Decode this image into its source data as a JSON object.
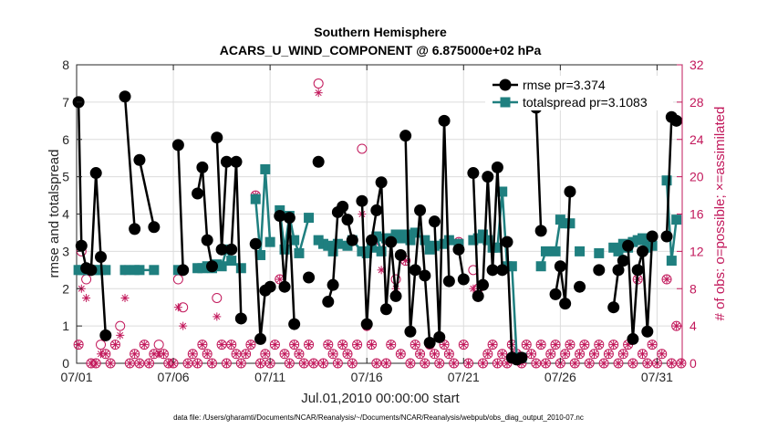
{
  "chart_data": {
    "type": "line",
    "title": [
      "Southern Hemisphere",
      "ACARS_U_WIND_COMPONENT @ 6.875000e+02 hPa"
    ],
    "xlabel": "Jul.01,2010 00:00:00 start",
    "ylabel": "rmse and totalspread",
    "ylabel_right": "# of obs: o=possible; ×=assimilated",
    "xlim": [
      0,
      31.3
    ],
    "ylim": [
      0,
      8
    ],
    "ylim_right": [
      0,
      32
    ],
    "x_ticks": [
      0,
      5,
      10,
      15,
      20,
      25,
      30
    ],
    "x_tick_labels": [
      "07/01",
      "07/06",
      "07/11",
      "07/16",
      "07/21",
      "07/26",
      "07/31"
    ],
    "y_ticks": [
      0,
      1,
      2,
      3,
      4,
      5,
      6,
      7,
      8
    ],
    "y_tick_labels": [
      "0",
      "1",
      "2",
      "3",
      "4",
      "5",
      "6",
      "7",
      "8"
    ],
    "y_ticks_right": [
      0,
      4,
      8,
      12,
      16,
      20,
      24,
      28,
      32
    ],
    "y_tick_labels_right": [
      "0",
      "4",
      "8",
      "12",
      "16",
      "20",
      "24",
      "28",
      "32"
    ],
    "grid": true,
    "legend_position": "top-right",
    "series": [
      {
        "name": "rmse pr=3.374",
        "color": "#000000",
        "marker": "circle",
        "segments": [
          {
            "x": [
              0.1,
              0.25,
              0.5,
              0.75,
              1.0,
              1.25,
              1.5
            ],
            "y": [
              7.0,
              3.15,
              2.55,
              2.5,
              5.1,
              2.85,
              0.75
            ]
          },
          {
            "x": [
              2.5,
              3.0
            ],
            "y": [
              7.15,
              3.6
            ]
          },
          {
            "x": [
              3.25,
              4.0
            ],
            "y": [
              5.45,
              3.65
            ]
          },
          {
            "x": [
              5.25,
              5.5
            ],
            "y": [
              5.85,
              2.5
            ]
          },
          {
            "x": [
              6.25,
              6.5,
              6.75,
              7.0
            ],
            "y": [
              4.55,
              5.25,
              3.3,
              2.6
            ]
          },
          {
            "x": [
              7.25,
              7.5,
              7.75
            ],
            "y": [
              6.05,
              3.05,
              5.4
            ]
          },
          {
            "x": [
              8.0,
              8.25,
              8.5
            ],
            "y": [
              3.05,
              5.4,
              1.2
            ]
          },
          {
            "x": [
              9.25,
              9.5,
              9.75,
              10.0
            ],
            "y": [
              3.2,
              0.65,
              1.95,
              2.05
            ]
          },
          {
            "x": [
              10.5,
              10.75,
              11.0,
              11.25
            ],
            "y": [
              3.95,
              2.05,
              3.9,
              1.05
            ]
          },
          {
            "x": [
              12.0
            ],
            "y": [
              2.3
            ]
          },
          {
            "x": [
              12.5
            ],
            "y": [
              5.4
            ]
          },
          {
            "x": [
              13.0,
              13.25,
              13.5,
              13.75,
              14.0,
              14.25
            ],
            "y": [
              1.65,
              2.1,
              4.05,
              4.2,
              3.85,
              3.3
            ]
          },
          {
            "x": [
              14.75,
              15.0,
              15.25,
              15.5,
              15.75,
              16.0,
              16.25,
              16.5,
              16.75
            ],
            "y": [
              4.35,
              1.05,
              3.3,
              4.1,
              4.85,
              1.45,
              3.25,
              1.8,
              2.9
            ]
          },
          {
            "x": [
              17.0,
              17.25,
              17.5,
              17.75,
              18.0,
              18.25
            ],
            "y": [
              6.1,
              0.85,
              2.5,
              4.1,
              2.35,
              0.55
            ]
          },
          {
            "x": [
              18.5,
              18.75,
              19.0,
              19.25
            ],
            "y": [
              3.8,
              0.7,
              6.5,
              2.2
            ]
          },
          {
            "x": [
              19.75,
              20.0
            ],
            "y": [
              3.05,
              2.25
            ]
          },
          {
            "x": [
              20.5,
              20.75,
              21.0,
              21.25,
              21.5,
              21.75,
              22.0
            ],
            "y": [
              5.1,
              1.8,
              2.1,
              5.0,
              2.5,
              5.25,
              2.5
            ]
          },
          {
            "x": [
              22.25,
              22.5,
              22.75,
              23.0
            ],
            "y": [
              3.25,
              0.15,
              0.1,
              0.15
            ]
          },
          {
            "x": [
              23.75,
              24.0
            ],
            "y": [
              6.85,
              3.55
            ]
          },
          {
            "x": [
              24.75,
              25.0,
              25.25,
              25.5
            ],
            "y": [
              1.85,
              2.6,
              1.6,
              4.6
            ]
          },
          {
            "x": [
              26.0
            ],
            "y": [
              2.05
            ]
          },
          {
            "x": [
              27.0
            ],
            "y": [
              2.5
            ]
          },
          {
            "x": [
              27.75,
              28.0,
              28.25
            ],
            "y": [
              1.5,
              2.5,
              2.75
            ]
          },
          {
            "x": [
              28.5,
              28.75,
              29.0,
              29.25,
              29.5,
              29.75
            ],
            "y": [
              3.15,
              0.65,
              2.5,
              3.0,
              0.85,
              3.4
            ]
          },
          {
            "x": [
              30.5,
              30.75,
              31.0
            ],
            "y": [
              3.4,
              6.6,
              6.5
            ]
          }
        ]
      },
      {
        "name": "totalspread pr=3.1083",
        "color": "#1f7f7f",
        "marker": "square",
        "segments": [
          {
            "x": [
              0.1,
              0.25,
              0.5,
              0.75,
              1.0,
              1.25,
              1.5
            ],
            "y": [
              2.5,
              2.5,
              2.5,
              2.5,
              2.5,
              2.5,
              2.5
            ]
          },
          {
            "x": [
              2.5,
              3.0,
              3.25,
              4.0
            ],
            "y": [
              2.5,
              2.5,
              2.5,
              2.5
            ]
          },
          {
            "x": [
              5.25
            ],
            "y": [
              2.5
            ]
          },
          {
            "x": [
              6.25,
              6.5,
              6.75,
              7.0,
              7.25,
              7.5,
              7.75,
              8.0
            ],
            "y": [
              2.55,
              2.55,
              2.6,
              2.55,
              2.65,
              2.6,
              3.05,
              2.75
            ]
          },
          {
            "x": [
              8.5
            ],
            "y": [
              2.55
            ]
          },
          {
            "x": [
              9.25,
              9.5,
              9.75,
              10.0
            ],
            "y": [
              4.4,
              2.9,
              5.2,
              3.25
            ]
          },
          {
            "x": [
              10.5,
              10.75,
              11.0,
              11.25,
              11.5,
              12.0
            ],
            "y": [
              4.1,
              3.05,
              3.95,
              3.3,
              2.95,
              3.9
            ]
          },
          {
            "x": [
              12.5,
              12.75,
              13.0,
              13.25,
              13.5,
              14.0
            ],
            "y": [
              3.3,
              3.2,
              3.15,
              3.0,
              3.2,
              3.15
            ]
          },
          {
            "x": [
              14.25,
              14.75,
              15.0,
              15.25,
              15.5,
              15.75,
              16.0,
              16.25,
              16.5,
              16.75,
              17.0,
              17.25,
              17.5
            ],
            "y": [
              3.3,
              3.0,
              2.95,
              3.1,
              3.4,
              3.0,
              3.35,
              3.35,
              3.45,
              3.35,
              3.45,
              3.3,
              3.5
            ]
          },
          {
            "x": [
              18.0,
              18.25,
              18.5,
              19.0,
              19.25,
              19.75
            ],
            "y": [
              3.3,
              3.05,
              3.15,
              3.2,
              3.3,
              3.2
            ]
          },
          {
            "x": [
              20.5,
              20.75,
              21.0,
              21.25,
              21.5,
              21.75,
              22.0,
              22.25
            ],
            "y": [
              3.3,
              3.35,
              3.45,
              3.3,
              3.1,
              3.1,
              4.6,
              2.6
            ]
          },
          {
            "x": [
              22.5,
              22.75,
              23.0
            ],
            "y": [
              2.6,
              0.15,
              0.15
            ]
          },
          {
            "x": [
              24.0,
              24.25,
              24.75,
              25.0,
              25.25,
              25.5
            ],
            "y": [
              2.6,
              3.0,
              3.0,
              3.85,
              3.75,
              3.75
            ]
          },
          {
            "x": [
              26.0
            ],
            "y": [
              3.0
            ]
          },
          {
            "x": [
              27.0
            ],
            "y": [
              2.95
            ]
          },
          {
            "x": [
              27.75,
              28.0,
              28.25,
              28.5,
              28.75,
              29.0,
              29.25,
              29.5,
              29.75
            ],
            "y": [
              3.1,
              3.0,
              3.2,
              3.1,
              3.25,
              3.3,
              3.35,
              3.1,
              3.15
            ]
          },
          {
            "x": [
              30.5,
              30.75,
              31.0
            ],
            "y": [
              4.9,
              2.75,
              3.85
            ]
          }
        ]
      }
    ],
    "obs_possible": {
      "name": "possible",
      "color": "#c2185b",
      "marker": "open-circle",
      "x": [
        0.1,
        0.25,
        0.5,
        0.75,
        1.0,
        1.25,
        1.5,
        1.75,
        2.0,
        2.25,
        2.5,
        2.75,
        3.0,
        3.25,
        3.5,
        3.75,
        4.0,
        4.25,
        4.5,
        4.75,
        5.0,
        5.25,
        5.5,
        5.75,
        6.0,
        6.25,
        6.5,
        6.75,
        7.0,
        7.25,
        7.5,
        7.75,
        8.0,
        8.25,
        8.5,
        8.75,
        9.0,
        9.25,
        9.5,
        9.75,
        10.0,
        10.25,
        10.5,
        10.75,
        11.0,
        11.25,
        11.5,
        11.75,
        12.0,
        12.25,
        12.5,
        12.75,
        13.0,
        13.25,
        13.5,
        13.75,
        14.0,
        14.25,
        14.5,
        14.75,
        15.0,
        15.25,
        15.5,
        15.75,
        16.0,
        16.25,
        16.5,
        16.75,
        17.0,
        17.25,
        17.5,
        17.75,
        18.0,
        18.25,
        18.5,
        18.75,
        19.0,
        19.25,
        19.5,
        19.75,
        20.0,
        20.25,
        20.5,
        20.75,
        21.0,
        21.25,
        21.5,
        21.75,
        22.0,
        22.25,
        22.5,
        22.75,
        23.0,
        23.25,
        23.5,
        23.75,
        24.0,
        24.25,
        24.5,
        24.75,
        25.0,
        25.25,
        25.5,
        25.75,
        26.0,
        26.25,
        26.5,
        26.75,
        27.0,
        27.25,
        27.5,
        27.75,
        28.0,
        28.25,
        28.5,
        28.75,
        29.0,
        29.25,
        29.5,
        29.75,
        30.0,
        30.25,
        30.5,
        30.75,
        31.0,
        31.25
      ],
      "y": [
        2,
        12,
        9,
        0,
        0,
        2,
        1,
        0,
        2,
        4,
        10,
        0,
        1,
        0,
        2,
        0,
        1,
        2,
        1,
        0,
        0,
        9,
        6,
        0,
        1,
        0,
        2,
        1,
        0,
        7,
        2,
        0,
        2,
        1,
        0,
        1,
        2,
        18,
        0,
        1,
        0,
        2,
        9,
        1,
        0,
        2,
        1,
        0,
        2,
        0,
        30,
        0,
        2,
        1,
        0,
        2,
        1,
        0,
        2,
        23,
        4,
        2,
        0,
        13,
        0,
        2,
        9,
        1,
        11,
        0,
        2,
        1,
        0,
        2,
        1,
        0,
        2,
        1,
        0,
        13,
        2,
        0,
        10,
        8,
        0,
        1,
        2,
        0,
        1,
        0,
        2,
        1,
        0,
        2,
        1,
        0,
        2,
        0,
        1,
        2,
        0,
        1,
        2,
        0,
        1,
        2,
        0,
        1,
        2,
        0,
        1,
        2,
        0,
        1,
        2,
        0,
        9,
        1,
        0,
        2,
        0,
        1,
        9,
        0,
        4,
        0
      ]
    },
    "obs_assimilated": {
      "name": "assimilated",
      "color": "#c2185b",
      "marker": "star",
      "x": [
        0.1,
        0.25,
        0.5,
        0.75,
        1.0,
        1.25,
        1.5,
        1.75,
        2.0,
        2.25,
        2.5,
        2.75,
        3.0,
        3.25,
        3.5,
        3.75,
        4.0,
        4.25,
        4.5,
        4.75,
        5.0,
        5.25,
        5.5,
        5.75,
        6.0,
        6.25,
        6.5,
        6.75,
        7.0,
        7.25,
        7.5,
        7.75,
        8.0,
        8.25,
        8.5,
        8.75,
        9.0,
        9.25,
        9.5,
        9.75,
        10.0,
        10.25,
        10.5,
        10.75,
        11.0,
        11.25,
        11.5,
        11.75,
        12.0,
        12.25,
        12.5,
        12.75,
        13.0,
        13.25,
        13.5,
        13.75,
        14.0,
        14.25,
        14.5,
        14.75,
        15.0,
        15.25,
        15.5,
        15.75,
        16.0,
        16.25,
        16.5,
        16.75,
        17.0,
        17.25,
        17.5,
        17.75,
        18.0,
        18.25,
        18.5,
        18.75,
        19.0,
        19.25,
        19.5,
        19.75,
        20.0,
        20.25,
        20.5,
        20.75,
        21.0,
        21.25,
        21.5,
        21.75,
        22.0,
        22.25,
        22.5,
        22.75,
        23.0,
        23.25,
        23.5,
        23.75,
        24.0,
        24.25,
        24.5,
        24.75,
        25.0,
        25.25,
        25.5,
        25.75,
        26.0,
        26.25,
        26.5,
        26.75,
        27.0,
        27.25,
        27.5,
        27.75,
        28.0,
        28.25,
        28.5,
        28.75,
        29.0,
        29.25,
        29.5,
        29.75,
        30.0,
        30.25,
        30.5,
        30.75,
        31.0,
        31.25
      ],
      "y": [
        2,
        8,
        7,
        0,
        0,
        1,
        1,
        0,
        2,
        3,
        7,
        0,
        1,
        0,
        2,
        0,
        1,
        1,
        1,
        0,
        0,
        6,
        4,
        0,
        1,
        0,
        2,
        1,
        0,
        5,
        2,
        0,
        2,
        1,
        0,
        1,
        2,
        18,
        0,
        1,
        0,
        2,
        9,
        1,
        0,
        2,
        1,
        0,
        2,
        0,
        29,
        0,
        2,
        1,
        0,
        2,
        1,
        0,
        2,
        16,
        4,
        2,
        0,
        10,
        0,
        2,
        8,
        1,
        11,
        0,
        2,
        1,
        0,
        2,
        1,
        0,
        2,
        1,
        0,
        13,
        2,
        0,
        8,
        7,
        0,
        1,
        2,
        0,
        1,
        0,
        2,
        1,
        0,
        2,
        1,
        0,
        2,
        0,
        1,
        2,
        0,
        1,
        2,
        0,
        1,
        2,
        0,
        1,
        2,
        0,
        1,
        2,
        0,
        1,
        2,
        0,
        9,
        1,
        0,
        2,
        0,
        1,
        9,
        0,
        4,
        0
      ]
    },
    "footnote": "data file: /Users/gharamti/Documents/NCAR/Reanalysis/~/Documents/NCAR/Reanalysis/webpub/obs_diag_output_2010-07.nc"
  }
}
